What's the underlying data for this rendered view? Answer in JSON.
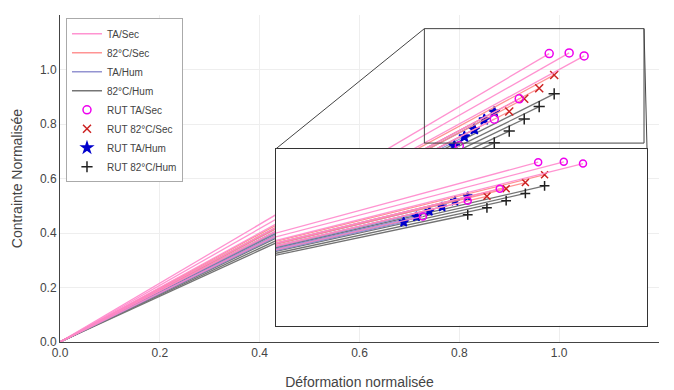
{
  "chart_data": {
    "type": "line",
    "xlabel": "Déformation normalisée",
    "ylabel": "Contrainte Normalisée",
    "xlim": [
      0,
      1.2
    ],
    "ylim": [
      0,
      1.2
    ],
    "xticks": [
      {
        "value": 0,
        "label": "0.0"
      },
      0.2,
      0.4,
      0.6,
      0.8,
      {
        "value": 1.0,
        "label": "1.0"
      }
    ],
    "yticks": [
      {
        "value": 0,
        "label": "0.0"
      },
      0.2,
      0.4,
      0.6,
      0.8,
      {
        "value": 1.0,
        "label": "1.0"
      }
    ],
    "grid": true,
    "legend": "upper left",
    "origin": {
      "x": 0,
      "y": 0
    },
    "series": [
      {
        "name": "TA/Sec",
        "rut_name": "RUT TA/Sec",
        "color": "#ff88cc",
        "rut_color": "#ee00ee",
        "marker": "circle-open",
        "x": [
          0.98,
          1.02,
          1.05,
          0.92,
          0.87,
          0.8
        ],
        "values": [
          1.0584,
          1.0608,
          1.05,
          0.8924,
          0.8178,
          0.72
        ]
      },
      {
        "name": "82°C/Sec",
        "rut_name": "RUT 82°C/Sec",
        "color": "#ff8888",
        "rut_color": "#cc2222",
        "marker": "x-thin-open",
        "x": [
          0.99,
          0.96,
          0.93,
          0.9
        ],
        "values": [
          0.9801,
          0.9312,
          0.8928,
          0.846
        ]
      },
      {
        "name": "TA/Hum",
        "rut_name": "RUT TA/Hum",
        "color": "#8888cc",
        "rut_color": "#0000cc",
        "marker": "star",
        "x": [
          0.87,
          0.85,
          0.83,
          0.81,
          0.79,
          0.77
        ],
        "values": [
          0.8439,
          0.816,
          0.7802,
          0.7533,
          0.7189,
          0.6853
        ]
      },
      {
        "name": "82°C/Hum",
        "rut_name": "RUT 82°C/Hum",
        "color": "#666666",
        "rut_color": "#222222",
        "marker": "cross-thin-open",
        "x": [
          0.99,
          0.96,
          0.93,
          0.9,
          0.87
        ],
        "values": [
          0.9108,
          0.864,
          0.8184,
          0.774,
          0.7308
        ]
      }
    ],
    "zoom_rect": {
      "x0": 0.73,
      "y0": 0.73,
      "width": 0.44,
      "height": 0.42,
      "color": "#444444"
    },
    "inset": {
      "xlim": [
        0.57,
        1.15
      ],
      "ylim": [
        0.04,
        1.14
      ],
      "tick_labels": false,
      "grid": false
    }
  }
}
